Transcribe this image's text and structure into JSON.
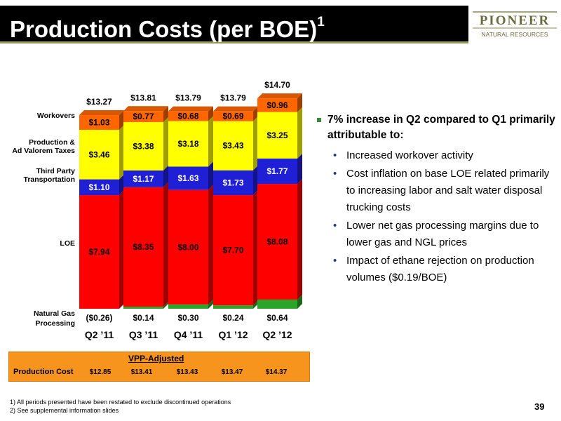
{
  "header": {
    "title": "Production Costs (per BOE)",
    "title_sup": "1",
    "logo_main": "PIONEER",
    "logo_sub": "NATURAL RESOURCES"
  },
  "colors": {
    "loe": "#ff0000",
    "third_party_transportation": "#1f1fd6",
    "production_ad_valorem_taxes": "#ffff00",
    "workovers": "#ff6600",
    "natural_gas_processing": "#2aa52a",
    "title_bar": "#000000",
    "vpp_box": "#f7941d",
    "bullet_square": "#3a8a3a",
    "sub_bullet": "#1f3a8a"
  },
  "chart_data": {
    "type": "bar",
    "stacked": true,
    "categories": [
      "Q2 '11",
      "Q3 '11",
      "Q4 '11",
      "Q1 '12",
      "Q2 '12"
    ],
    "series": [
      {
        "name": "Natural Gas Processing",
        "values": [
          -0.26,
          0.14,
          0.3,
          0.24,
          0.64
        ],
        "labels": [
          "($0.26)",
          "$0.14",
          "$0.30",
          "$0.24",
          "$0.64"
        ]
      },
      {
        "name": "LOE",
        "values": [
          7.94,
          8.35,
          8.0,
          7.7,
          8.08
        ],
        "labels": [
          "$7.94",
          "$8.35",
          "$8.00",
          "$7.70",
          "$8.08"
        ]
      },
      {
        "name": "Third Party Transportation",
        "values": [
          1.1,
          1.17,
          1.63,
          1.73,
          1.77
        ],
        "labels": [
          "$1.10",
          "$1.17",
          "$1.63",
          "$1.73",
          "$1.77"
        ]
      },
      {
        "name": "Production & Ad Valorem Taxes",
        "values": [
          3.46,
          3.38,
          3.18,
          3.43,
          3.25
        ],
        "labels": [
          "$3.46",
          "$3.38",
          "$3.18",
          "$3.43",
          "$3.25"
        ]
      },
      {
        "name": "Workovers",
        "values": [
          1.03,
          0.77,
          0.68,
          0.69,
          0.96
        ],
        "labels": [
          "$1.03",
          "$0.77",
          "$0.68",
          "$0.69",
          "$0.96"
        ]
      }
    ],
    "totals": [
      13.27,
      13.81,
      13.79,
      13.79,
      14.7
    ],
    "total_labels": [
      "$13.27",
      "$13.81",
      "$13.79",
      "$13.79",
      "$14.70"
    ],
    "series_labels": [
      {
        "key": "workovers",
        "lines": [
          "Workovers"
        ]
      },
      {
        "key": "taxes",
        "lines": [
          "Production &",
          "Ad Valorem Taxes"
        ]
      },
      {
        "key": "transportation",
        "lines": [
          "Third Party",
          "Transportation"
        ]
      },
      {
        "key": "loe",
        "lines": [
          "LOE"
        ]
      },
      {
        "key": "gas_processing",
        "lines": [
          "Natural Gas",
          "Processing"
        ]
      }
    ],
    "category_labels": [
      "Q2 ’11",
      "Q3 ’11",
      "Q4 ’11",
      "Q1 ’12",
      "Q2 ’12"
    ],
    "ylim": [
      0,
      15
    ]
  },
  "vpp": {
    "title": "VPP-Adjusted",
    "label": "Production Cost",
    "values": [
      "$12.85",
      "$13.41",
      "$13.43",
      "$13.47",
      "$14.37"
    ]
  },
  "bullets": {
    "main": "7% increase in Q2 compared to Q1 primarily attributable to:",
    "items": [
      "Increased workover activity",
      "Cost inflation on base LOE related primarily to increasing labor and salt water disposal trucking costs",
      "Lower net gas processing margins due to lower gas and NGL prices",
      "Impact of ethane rejection on production volumes ($0.19/BOE)"
    ]
  },
  "footnotes": [
    "1)  All periods presented have been restated to exclude discontinued operations",
    "2)  See supplemental information slides"
  ],
  "page_number": "39"
}
